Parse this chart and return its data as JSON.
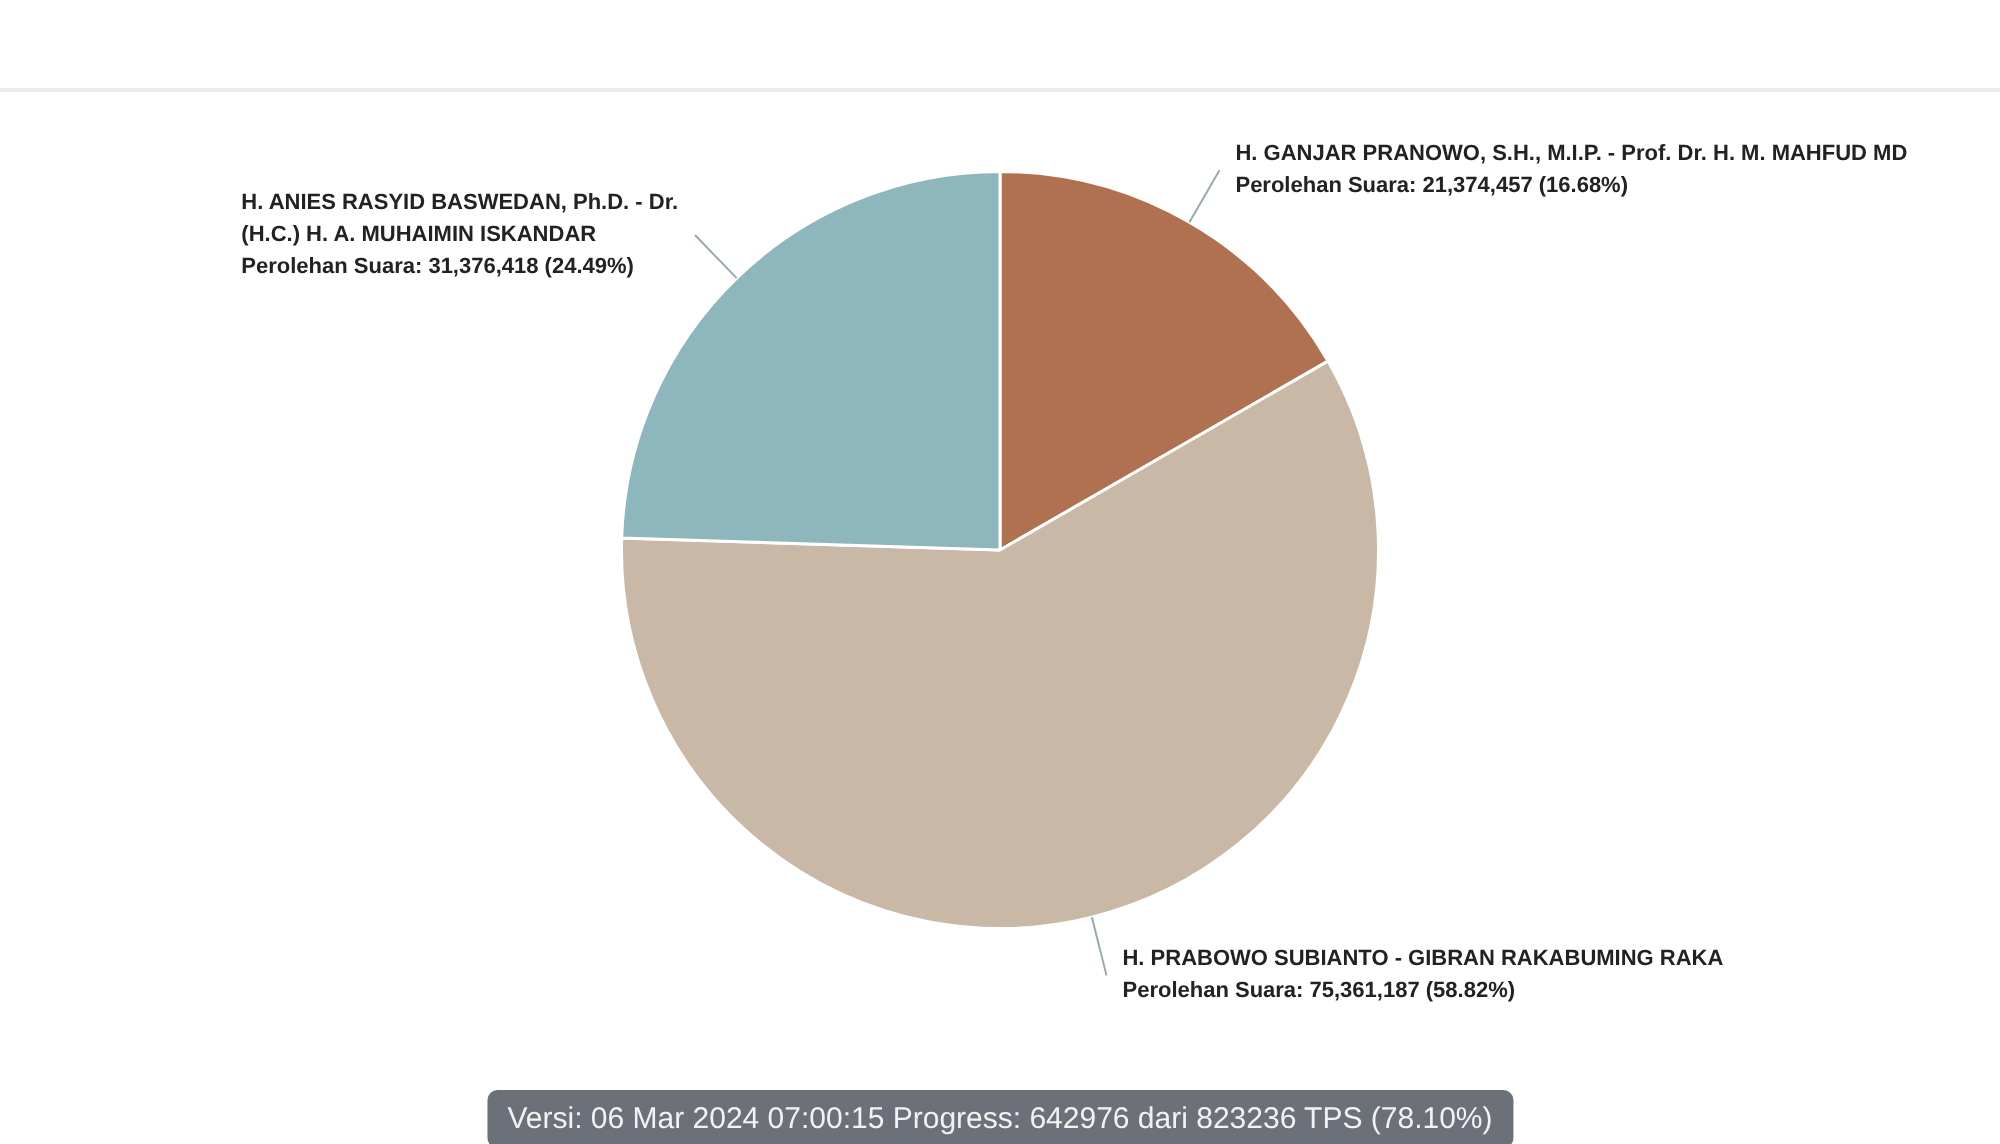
{
  "chart_data": {
    "type": "pie",
    "categories": [
      "H. GANJAR PRANOWO, S.H., M.I.P. - Prof. Dr. H. M. MAHFUD MD",
      "H. PRABOWO SUBIANTO - GIBRAN RAKABUMING RAKA",
      "H. ANIES RASYID BASWEDAN, Ph.D. - Dr. (H.C.) H. A. MUHAIMIN ISKANDAR"
    ],
    "values": [
      21374457,
      75361187,
      31376418
    ],
    "colors": [
      "#b07150",
      "#c8b8a5",
      "#8db7bc"
    ],
    "value_labels": [
      "Perolehan Suara: 21,374,457 (16.68%)",
      "Perolehan Suara: 75,361,187 (58.82%)",
      "Perolehan Suara: 31,376,418 (24.49%)"
    ],
    "annotations": [
      "Versi: 06 Mar 2024 07:00:15 Progress: 642976 dari 823236 TPS (78.10%)"
    ]
  }
}
